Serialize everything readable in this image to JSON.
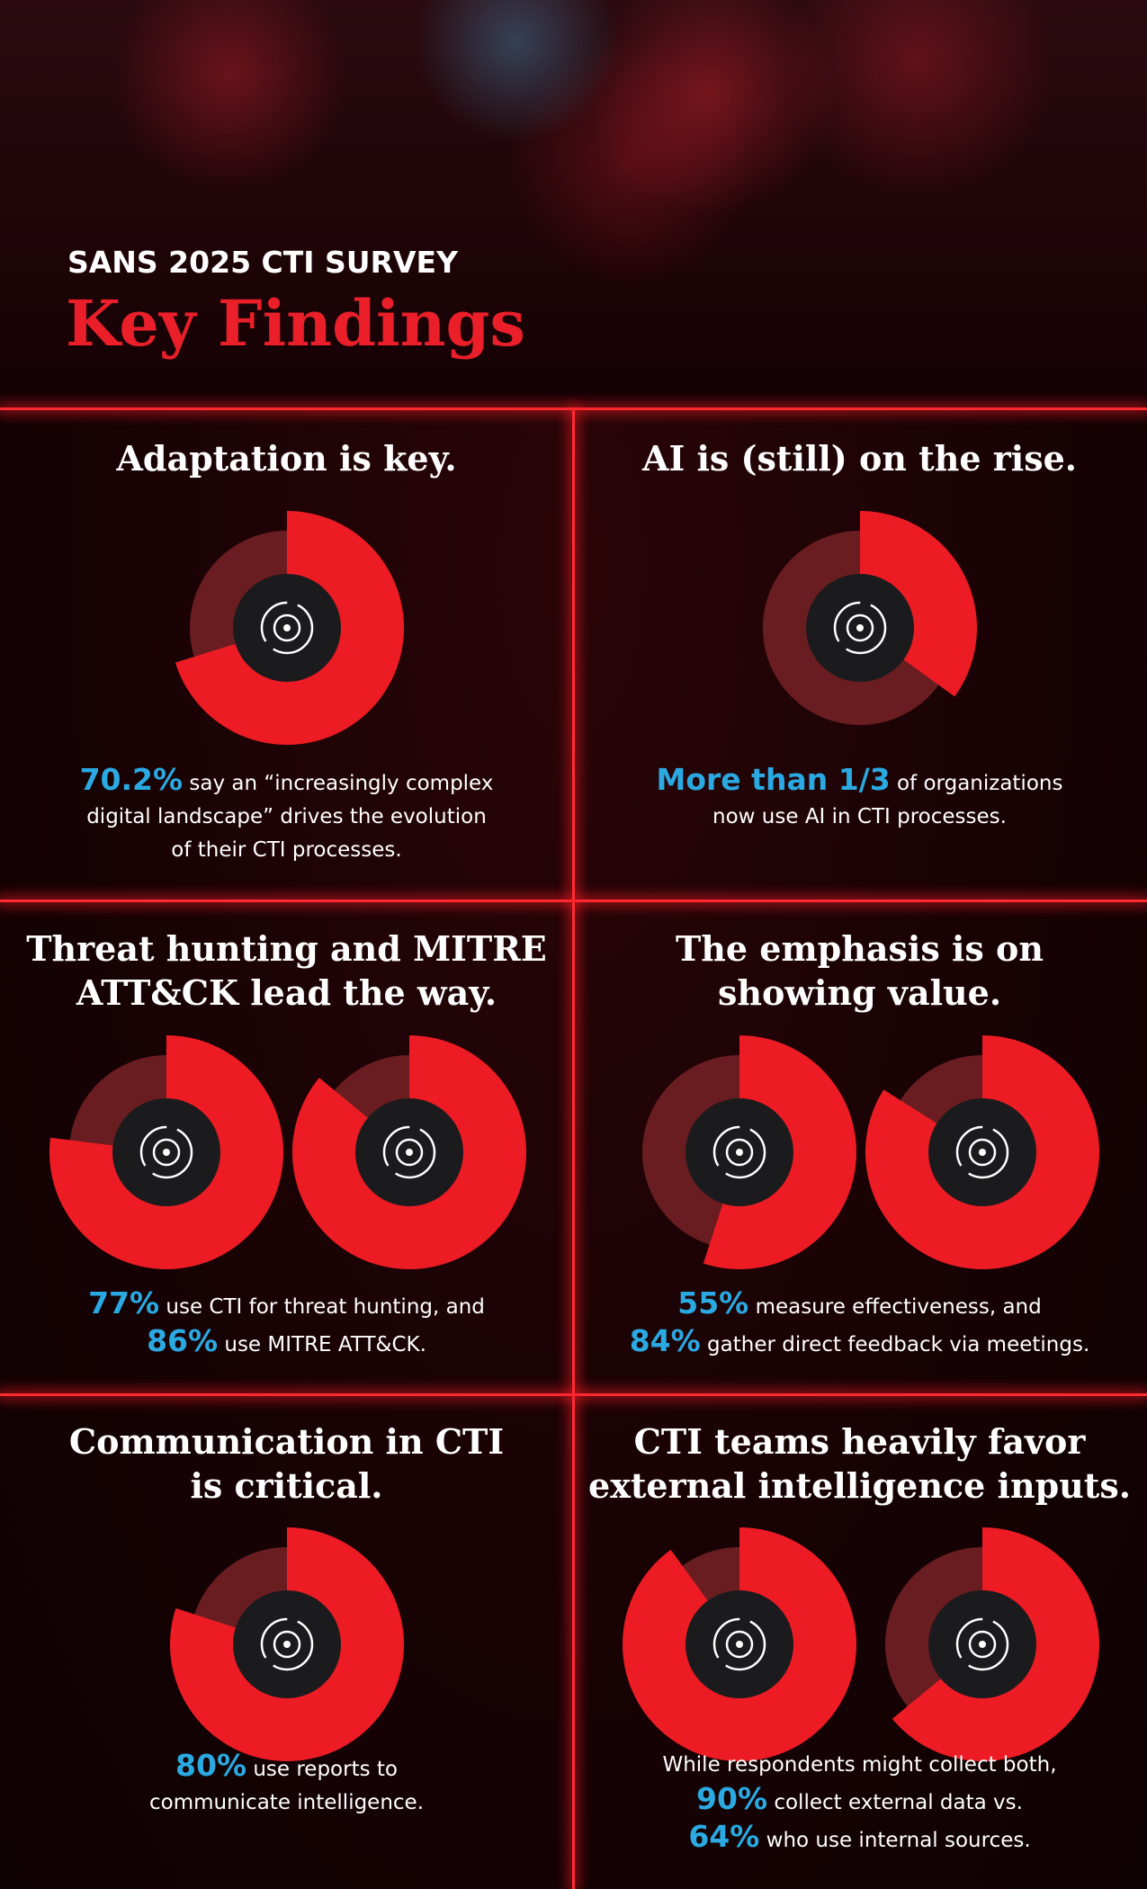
{
  "header": {
    "eyebrow": "SANS 2025 CTI SURVEY",
    "title": "Key Findings"
  },
  "panels": [
    {
      "title": [
        "Adaptation is key."
      ],
      "donuts": [
        70.2
      ],
      "body": [
        {
          "highlight": "70.2%",
          "text": "say an “increasingly complex"
        },
        {
          "text": "digital landscape” drives the evolution"
        },
        {
          "text": "of their CTI processes."
        }
      ]
    },
    {
      "title": [
        "AI is (still) on the rise."
      ],
      "donuts": [
        35
      ],
      "body": [
        {
          "highlight": "More than 1/3",
          "text": "of organizations"
        },
        {
          "text": "now use AI in CTI processes."
        }
      ]
    },
    {
      "title": [
        "Threat hunting and MITRE",
        "ATT&CK lead the way."
      ],
      "donuts": [
        77,
        86
      ],
      "body": [
        {
          "highlight": "77%",
          "text": "use CTI for threat hunting, and"
        },
        {
          "highlight": "86%",
          "text": "use MITRE ATT&CK."
        }
      ]
    },
    {
      "title": [
        "The emphasis is on",
        "showing value."
      ],
      "donuts": [
        55,
        84
      ],
      "body": [
        {
          "highlight": "55%",
          "text": "measure effectiveness, and"
        },
        {
          "highlight": "84%",
          "text": "gather direct feedback via meetings."
        }
      ]
    },
    {
      "title": [
        "Communication in CTI",
        "is critical."
      ],
      "donuts": [
        80
      ],
      "body": [
        {
          "highlight": "80%",
          "text": "use reports to"
        },
        {
          "text": "communicate intelligence."
        }
      ]
    },
    {
      "title": [
        "CTI teams heavily favor",
        "external intelligence inputs."
      ],
      "donuts": [
        90,
        64
      ],
      "body": [
        {
          "text": "While respondents might collect both,"
        },
        {
          "highlight": "90%",
          "text": "collect external data vs."
        },
        {
          "highlight": "64%",
          "text": "who use internal sources."
        }
      ]
    }
  ]
}
